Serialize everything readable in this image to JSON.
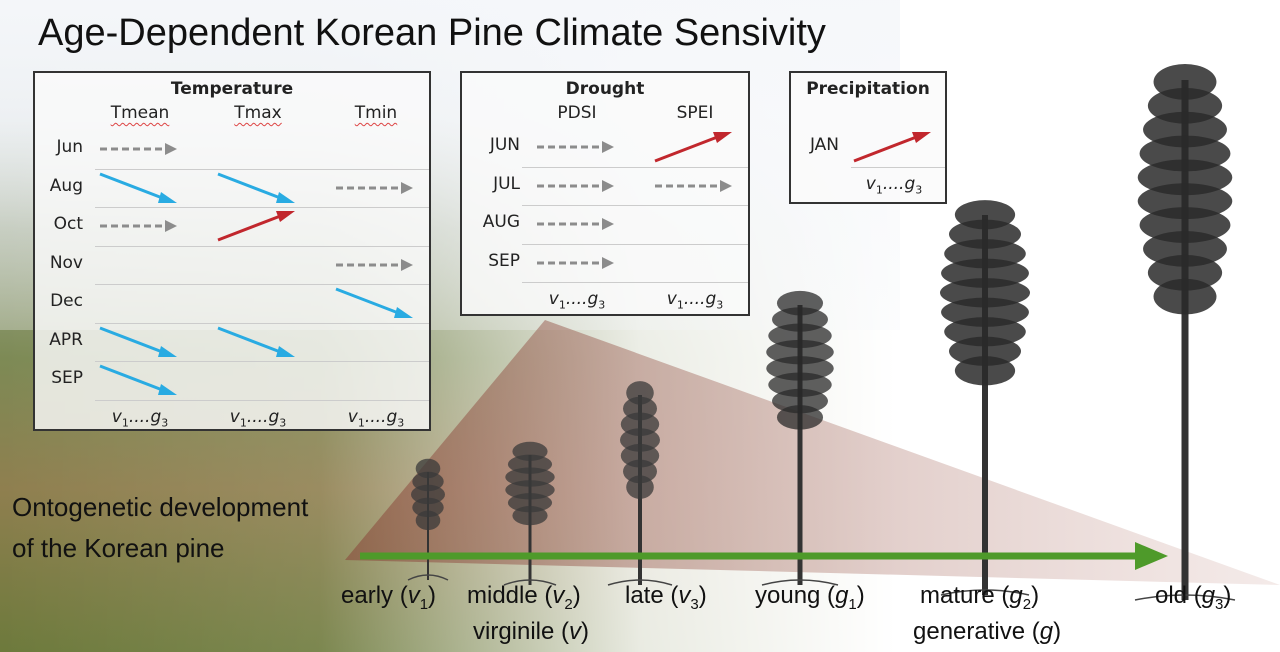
{
  "title": "Age-Dependent Korean Pine Climate Sensivity",
  "colors": {
    "negative": "#29abe2",
    "positive": "#c1272d",
    "neutral": "#8c8c8c",
    "growth_arrow": "#4e9a2a",
    "cone": "#a0645a"
  },
  "range": {
    "a": "v",
    "a_sub": "1",
    "dots": "....",
    "b": "g",
    "b_sub": "3"
  },
  "panels": [
    {
      "id": "temperature",
      "title": "Temperature",
      "columns": [
        "Tmean",
        "Tmax",
        "Tmin"
      ],
      "rows": [
        {
          "label": "Jun",
          "arrows": [
            "neutral",
            "none",
            "none"
          ]
        },
        {
          "label": "Aug",
          "arrows": [
            "negative",
            "negative",
            "neutral"
          ]
        },
        {
          "label": "Oct",
          "arrows": [
            "neutral",
            "positive",
            "none"
          ]
        },
        {
          "label": "Nov",
          "arrows": [
            "none",
            "none",
            "neutral"
          ]
        },
        {
          "label": "Dec",
          "arrows": [
            "none",
            "none",
            "negative"
          ]
        },
        {
          "label": "APR",
          "arrows": [
            "negative",
            "negative",
            "none"
          ]
        },
        {
          "label": "SEP",
          "arrows": [
            "negative",
            "none",
            "none"
          ]
        }
      ]
    },
    {
      "id": "drought",
      "title": "Drought",
      "columns": [
        "PDSI",
        "SPEI"
      ],
      "rows": [
        {
          "label": "JUN",
          "arrows": [
            "neutral",
            "positive"
          ]
        },
        {
          "label": "JUL",
          "arrows": [
            "neutral",
            "neutral"
          ]
        },
        {
          "label": "AUG",
          "arrows": [
            "neutral",
            "none"
          ]
        },
        {
          "label": "SEP",
          "arrows": [
            "neutral",
            "none"
          ]
        }
      ]
    },
    {
      "id": "precipitation",
      "title": "Precipitation",
      "columns": [
        ""
      ],
      "rows": [
        {
          "label": "JAN",
          "arrows": [
            "positive"
          ]
        }
      ]
    }
  ],
  "ontogeny": {
    "line1": "Ontogenetic development",
    "line2": "of the Korean pine"
  },
  "stages": [
    {
      "pre": "early (",
      "sym": "v",
      "sub": "1",
      "post": ")"
    },
    {
      "pre": "middle (",
      "sym": "v",
      "sub": "2",
      "post": ")"
    },
    {
      "pre": "late (",
      "sym": "v",
      "sub": "3",
      "post": ")"
    },
    {
      "pre": "young (",
      "sym": "g",
      "sub": "1",
      "post": ")"
    },
    {
      "pre": "mature (",
      "sym": "g",
      "sub": "2",
      "post": ")"
    },
    {
      "pre": "old (",
      "sym": "g",
      "sub": "3",
      "post": ")"
    }
  ],
  "groups": [
    {
      "pre": "virginile (",
      "sym": "v",
      "post": ")"
    },
    {
      "pre": "generative (",
      "sym": "g",
      "post": ")"
    }
  ]
}
